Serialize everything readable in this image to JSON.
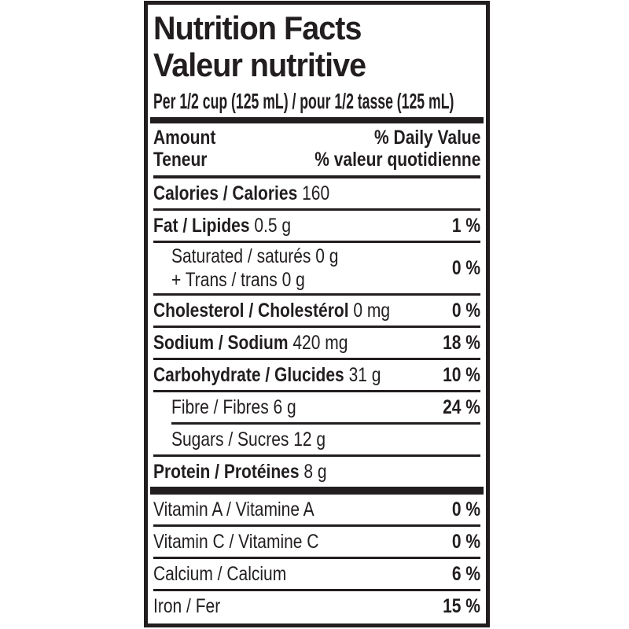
{
  "page": {
    "background": "#ffffff"
  },
  "label": {
    "ink_color": "#221e1f",
    "background": "#ffffff",
    "title_en": "Nutrition Facts",
    "title_fr": "Valeur nutritive",
    "serving": "Per 1/2 cup (125 mL) / pour 1/2 tasse (125 mL)",
    "columns": {
      "amount_en": "Amount",
      "amount_fr": "Teneur",
      "daily_value_en": "% Daily Value",
      "daily_value_fr": "% valeur quotidienne"
    },
    "nutrients": [
      {
        "id": "calories",
        "bold": "Calories / Calories",
        "amount": "160",
        "value": "",
        "indent": false,
        "divider": "none"
      },
      {
        "id": "fat",
        "bold": "Fat / Lipides",
        "amount": "0.5 g",
        "value": "1 %",
        "indent": false,
        "divider": "full"
      },
      {
        "id": "saturated-trans",
        "lines": [
          "Saturated / saturés 0 g",
          "+ Trans / trans 0 g"
        ],
        "value": "0 %",
        "indent": true,
        "divider": "full"
      },
      {
        "id": "cholesterol",
        "bold": "Cholesterol / Cholestérol",
        "amount": "0 mg",
        "value": "0 %",
        "indent": false,
        "divider": "full"
      },
      {
        "id": "sodium",
        "bold": "Sodium / Sodium",
        "amount": "420 mg",
        "value": "18 %",
        "indent": false,
        "divider": "full"
      },
      {
        "id": "carbohydrate",
        "bold": "Carbohydrate / Glucides",
        "amount": "31 g",
        "value": "10 %",
        "indent": false,
        "divider": "full"
      },
      {
        "id": "fibre",
        "text": "Fibre / Fibres 6 g",
        "value": "24 %",
        "indent": true,
        "divider": "full"
      },
      {
        "id": "sugars",
        "text": "Sugars / Sucres 12 g",
        "value": "",
        "indent": true,
        "divider": "indented"
      },
      {
        "id": "protein",
        "bold": "Protein / Protéines",
        "amount": "8 g",
        "value": "",
        "indent": false,
        "divider": "full"
      }
    ],
    "micronutrients": [
      {
        "id": "vitamin-a",
        "text": "Vitamin A / Vitamine A",
        "value": "0 %",
        "indent": false,
        "divider": "none"
      },
      {
        "id": "vitamin-c",
        "text": "Vitamin C / Vitamine C",
        "value": "0 %",
        "indent": false,
        "divider": "full"
      },
      {
        "id": "calcium",
        "text": "Calcium / Calcium",
        "value": "6 %",
        "indent": false,
        "divider": "full"
      },
      {
        "id": "iron",
        "text": "Iron / Fer",
        "value": "15 %",
        "indent": false,
        "divider": "full"
      }
    ]
  }
}
